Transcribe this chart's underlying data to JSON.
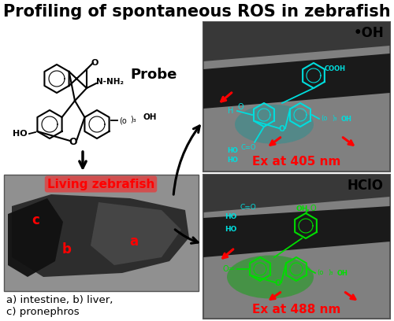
{
  "title": "Profiling of spontaneous ROS in zebrafish",
  "title_fontsize": 15,
  "title_fontweight": "bold",
  "bg_color": "#ffffff",
  "probe_label": "Probe",
  "living_label": "Living zebrafish",
  "living_label_color": "#ff0000",
  "abc_label": "a) intestine, b) liver,\nc) pronephros",
  "oh_label": "•OH",
  "hclo_label": "HClO",
  "ex405_label": "Ex at 405 nm",
  "ex488_label": "Ex at 488 nm",
  "ex_label_color": "#ff0000",
  "cyan_color": "#00dddd",
  "green_color": "#00dd00",
  "red_arrow_color": "#ff0000",
  "black_color": "#000000",
  "panel_border": "#555555",
  "a_label": "a",
  "b_label": "b",
  "c_label": "c",
  "fish_gray": "#888888",
  "fish_dark": "#2a2a2a",
  "fish_mid": "#555555"
}
